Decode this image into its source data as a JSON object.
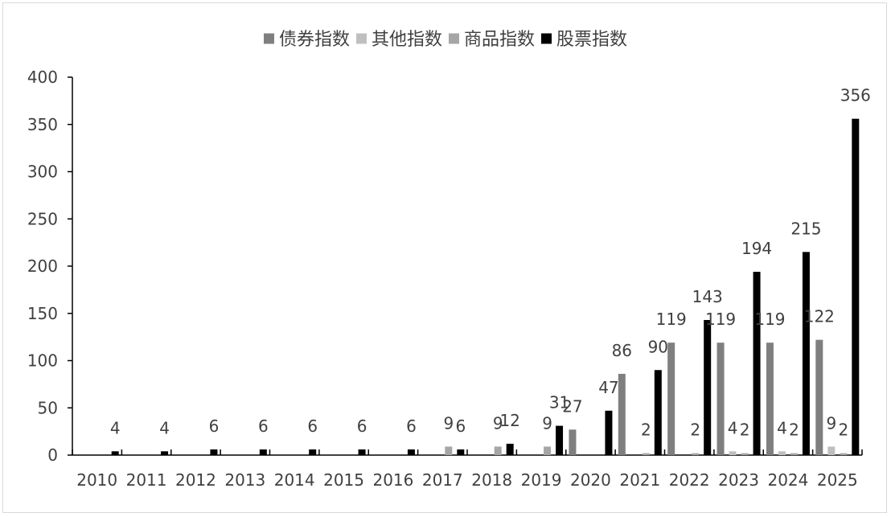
{
  "chart_data": {
    "type": "bar",
    "categories": [
      "2010",
      "2011",
      "2012",
      "2013",
      "2014",
      "2015",
      "2016",
      "2017",
      "2018",
      "2019",
      "2020",
      "2021",
      "2022",
      "2023",
      "2024",
      "2025"
    ],
    "series": [
      {
        "name": "债券指数",
        "color": "#7f7f7f",
        "values": [
          0,
          0,
          0,
          0,
          0,
          0,
          0,
          0,
          0,
          0,
          27,
          86,
          119,
          119,
          119,
          122
        ],
        "labels": [
          "",
          "",
          "",
          "",
          "",
          "",
          "",
          "",
          "",
          "",
          "27",
          "86",
          "119",
          "119",
          "119",
          "122"
        ]
      },
      {
        "name": "其他指数",
        "color": "#bfbfbf",
        "values": [
          0,
          0,
          0,
          0,
          0,
          0,
          0,
          0,
          0,
          0,
          0,
          0,
          0,
          4,
          4,
          9
        ],
        "labels": [
          "",
          "",
          "",
          "",
          "",
          "",
          "",
          "",
          "",
          "",
          "",
          "",
          "",
          "4",
          "4",
          "9"
        ]
      },
      {
        "name": "商品指数",
        "color": "#a6a6a6",
        "values": [
          0,
          0,
          0,
          0,
          0,
          0,
          0,
          9,
          9,
          9,
          0,
          2,
          2,
          2,
          2,
          2
        ],
        "labels": [
          "",
          "",
          "",
          "",
          "",
          "",
          "",
          "9",
          "9",
          "9",
          "",
          "2",
          "2",
          "2",
          "2",
          "2"
        ]
      },
      {
        "name": "股票指数",
        "color": "#000000",
        "values": [
          4,
          4,
          6,
          6,
          6,
          6,
          6,
          6,
          12,
          31,
          47,
          90,
          143,
          194,
          215,
          356
        ],
        "labels": [
          "4",
          "4",
          "6",
          "6",
          "6",
          "6",
          "6",
          "6",
          "12",
          "31",
          "47",
          "90",
          "143",
          "194",
          "215",
          "356"
        ]
      }
    ],
    "ylim": [
      0,
      400
    ],
    "yticks": [
      0,
      50,
      100,
      150,
      200,
      250,
      300,
      350,
      400
    ],
    "legend_position": "top",
    "grid": false,
    "title": "",
    "xlabel": "",
    "ylabel": ""
  }
}
